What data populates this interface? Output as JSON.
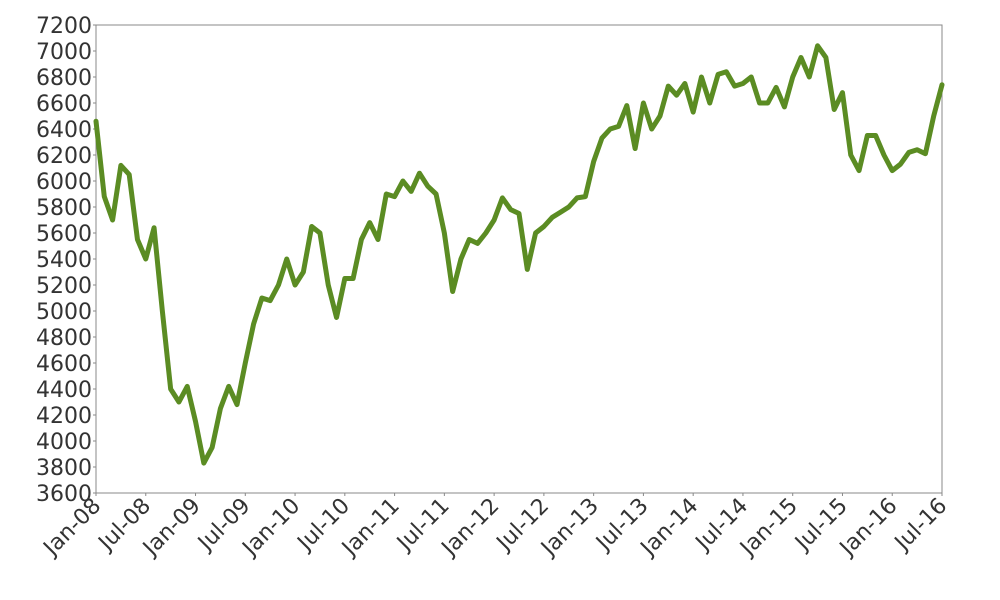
{
  "chart_data": {
    "type": "line",
    "categories": [
      "Jan-08",
      null,
      null,
      null,
      null,
      null,
      "Jul-08",
      null,
      null,
      null,
      null,
      null,
      "Jan-09",
      null,
      null,
      null,
      null,
      null,
      "Jul-09",
      null,
      null,
      null,
      null,
      null,
      "Jan-10",
      null,
      null,
      null,
      null,
      null,
      "Jul-10",
      null,
      null,
      null,
      null,
      null,
      "Jan-11",
      null,
      null,
      null,
      null,
      null,
      "Jul-11",
      null,
      null,
      null,
      null,
      null,
      "Jan-12",
      null,
      null,
      null,
      null,
      null,
      "Jul-12",
      null,
      null,
      null,
      null,
      null,
      "Jan-13",
      null,
      null,
      null,
      null,
      null,
      "Jul-13",
      null,
      null,
      null,
      null,
      null,
      "Jan-14",
      null,
      null,
      null,
      null,
      null,
      "Jul-14",
      null,
      null,
      null,
      null,
      null,
      "Jan-15",
      null,
      null,
      null,
      null,
      null,
      "Jul-15",
      null,
      null,
      null,
      null,
      null,
      "Jan-16",
      null,
      null,
      null,
      null,
      null,
      "Jul-16"
    ],
    "values": [
      6460,
      5880,
      5700,
      6120,
      6050,
      5550,
      5400,
      5640,
      5000,
      4400,
      4300,
      4420,
      4150,
      3830,
      3950,
      4250,
      4420,
      4280,
      4600,
      4900,
      5100,
      5080,
      5200,
      5400,
      5200,
      5300,
      5650,
      5600,
      5200,
      4950,
      5250,
      5250,
      5550,
      5680,
      5550,
      5900,
      5880,
      6000,
      5920,
      6060,
      5960,
      5900,
      5600,
      5150,
      5400,
      5550,
      5520,
      5600,
      5700,
      5870,
      5780,
      5750,
      5320,
      5600,
      5650,
      5720,
      5760,
      5800,
      5870,
      5880,
      6150,
      6330,
      6400,
      6420,
      6580,
      6250,
      6600,
      6400,
      6500,
      6730,
      6660,
      6750,
      6530,
      6800,
      6600,
      6820,
      6840,
      6730,
      6750,
      6800,
      6600,
      6600,
      6720,
      6570,
      6800,
      6950,
      6800,
      7040,
      6950,
      6550,
      6680,
      6200,
      6080,
      6350,
      6350,
      6200,
      6080,
      6130,
      6220,
      6240,
      6210,
      6500,
      6740
    ],
    "color": "#5b8c23",
    "ylim": [
      3600,
      7200
    ],
    "yticks": [
      3600,
      3800,
      4000,
      4200,
      4400,
      4600,
      4800,
      5000,
      5200,
      5400,
      5600,
      5800,
      6000,
      6200,
      6400,
      6600,
      6800,
      7000,
      7200
    ],
    "grid": false
  }
}
